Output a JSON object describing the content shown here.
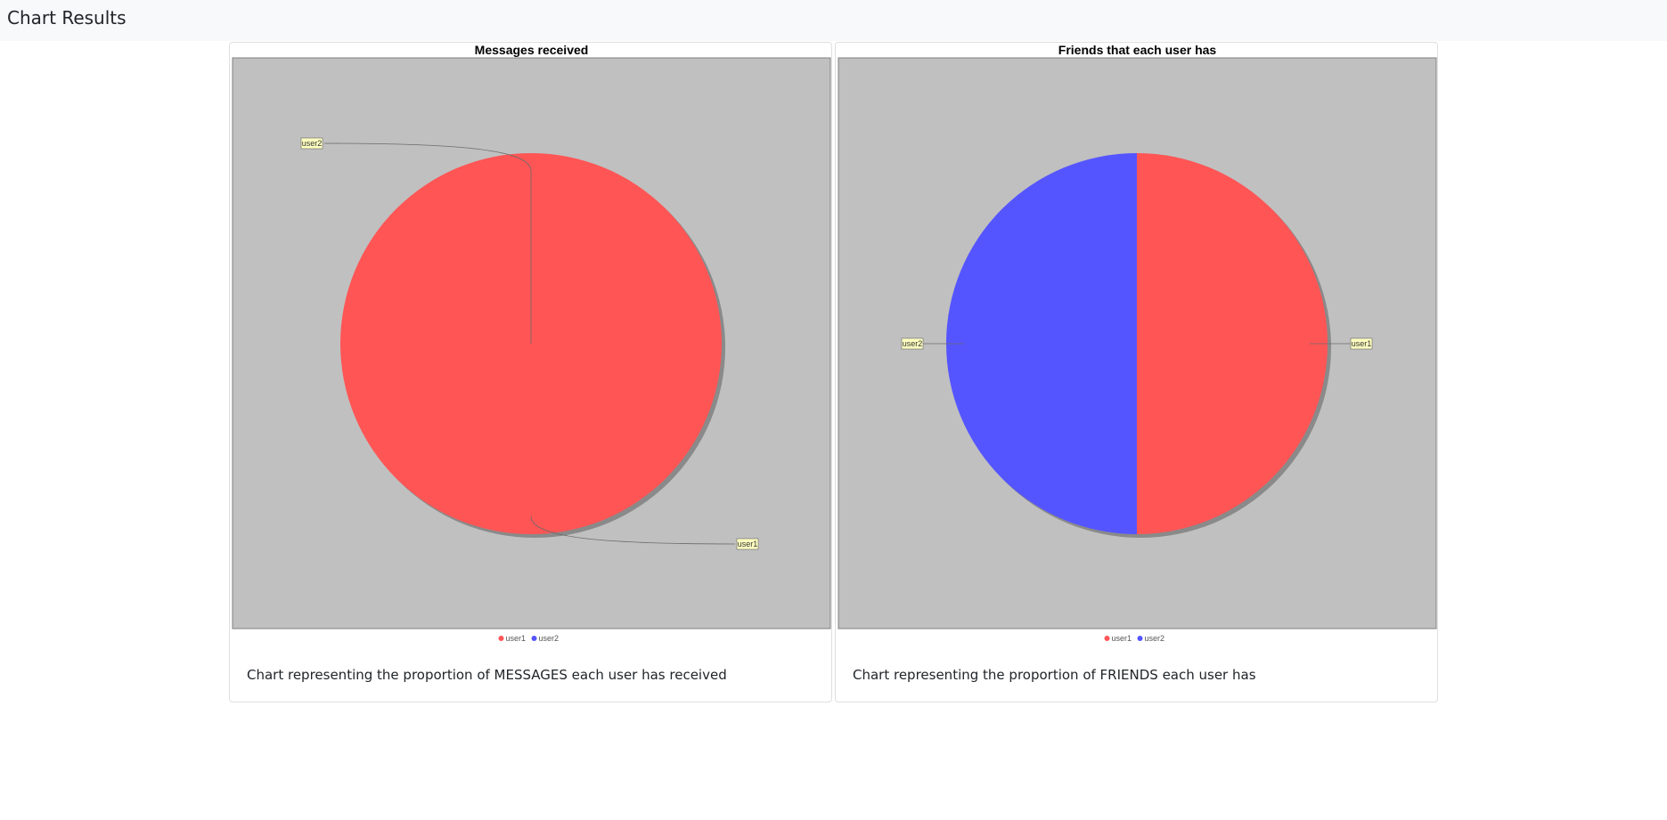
{
  "page": {
    "title": "Chart Results"
  },
  "colors": {
    "user1": "#FF5555",
    "user2": "#5555FF",
    "plot_bg": "#C0C0C0",
    "label_bg": "#FFFFC0"
  },
  "charts": [
    {
      "caption": "Chart representing the proportion of MESSAGES each user has received"
    },
    {
      "caption": "Chart representing the proportion of FRIENDS each user has"
    }
  ],
  "chart_data": [
    {
      "type": "pie",
      "title": "Messages received",
      "categories": [
        "user1",
        "user2"
      ],
      "values": [
        100,
        0
      ],
      "legend": [
        "user1",
        "user2"
      ],
      "legend_position": "bottom"
    },
    {
      "type": "pie",
      "title": "Friends that each user has",
      "categories": [
        "user1",
        "user2"
      ],
      "values": [
        50,
        50
      ],
      "legend": [
        "user1",
        "user2"
      ],
      "legend_position": "bottom"
    }
  ]
}
